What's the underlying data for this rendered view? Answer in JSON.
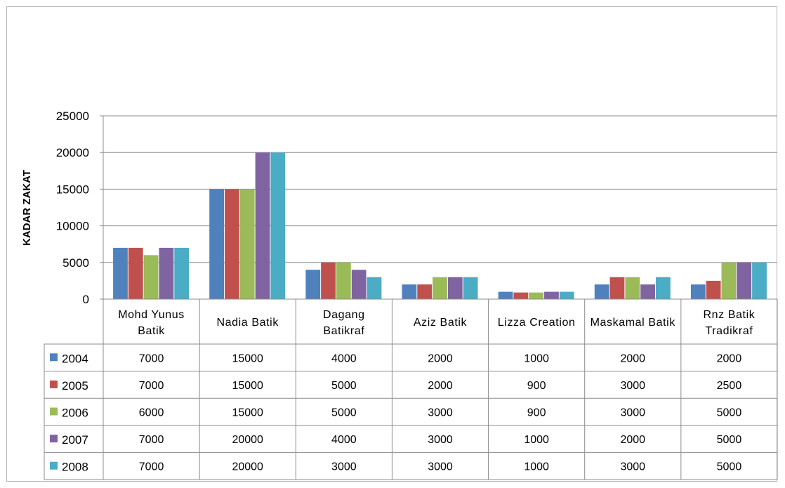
{
  "chart_data": {
    "type": "bar",
    "title": "",
    "xlabel": "",
    "ylabel": "KADAR ZAKAT",
    "ylim": [
      0,
      25000
    ],
    "yticks": [
      0,
      5000,
      10000,
      15000,
      20000,
      25000
    ],
    "grid": true,
    "legend": "data-table",
    "categories": [
      "Mohd Yunus Batik",
      "Nadia Batik",
      "Dagang Batikraf",
      "Aziz Batik",
      "Lizza Creation",
      "Maskamal Batik",
      "Rnz Batik Tradikraf"
    ],
    "series": [
      {
        "name": "2004",
        "color": "#4F81BD",
        "values": [
          7000,
          15000,
          4000,
          2000,
          1000,
          2000,
          2000
        ]
      },
      {
        "name": "2005",
        "color": "#C0504D",
        "values": [
          7000,
          15000,
          5000,
          2000,
          900,
          3000,
          2500
        ]
      },
      {
        "name": "2006",
        "color": "#9BBB59",
        "values": [
          6000,
          15000,
          5000,
          3000,
          900,
          3000,
          5000
        ]
      },
      {
        "name": "2007",
        "color": "#8064A2",
        "values": [
          7000,
          20000,
          4000,
          3000,
          1000,
          2000,
          5000
        ]
      },
      {
        "name": "2008",
        "color": "#4BACC6",
        "values": [
          7000,
          20000,
          3000,
          3000,
          1000,
          3000,
          5000
        ]
      }
    ]
  }
}
